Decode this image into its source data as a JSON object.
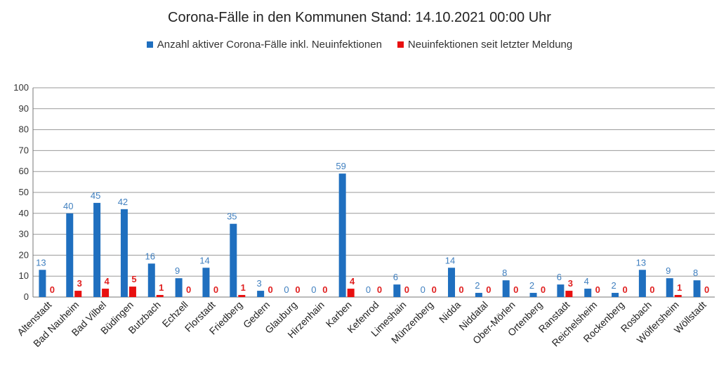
{
  "colors": {
    "active": "#1f6fbf",
    "new": "#e81010",
    "grid": "#999999"
  },
  "chart_data": {
    "type": "bar",
    "title": "Corona-Fälle in den Kommunen Stand: 14.10.2021 00:00 Uhr",
    "xlabel": "",
    "ylabel": "",
    "ylim": [
      0,
      100
    ],
    "yticks": [
      0,
      10,
      20,
      30,
      40,
      50,
      60,
      70,
      80,
      90,
      100
    ],
    "grid": true,
    "legend_position": "top",
    "categories": [
      "Altenstadt",
      "Bad Nauheim",
      "Bad Vilbel",
      "Büdingen",
      "Butzbach",
      "Echzell",
      "Florstadt",
      "Friedberg",
      "Gedern",
      "Glauburg",
      "Hirzenhain",
      "Karben",
      "Kefenrod",
      "Limeshain",
      "Münzenberg",
      "Nidda",
      "Niddatal",
      "Ober-Mörlen",
      "Ortenberg",
      "Ranstadt",
      "Reichelsheim",
      "Rockenberg",
      "Rosbach",
      "Wölfersheim",
      "Wöllstadt"
    ],
    "series": [
      {
        "name": "Anzahl aktiver Corona-Fälle inkl. Neuinfektionen",
        "values": [
          13,
          40,
          45,
          42,
          16,
          9,
          14,
          35,
          3,
          0,
          0,
          59,
          0,
          6,
          0,
          14,
          2,
          8,
          2,
          6,
          4,
          2,
          13,
          9,
          8
        ]
      },
      {
        "name": "Neuinfektionen seit letzter Meldung",
        "values": [
          0,
          3,
          4,
          5,
          1,
          0,
          0,
          1,
          0,
          0,
          0,
          4,
          0,
          0,
          0,
          0,
          0,
          0,
          0,
          3,
          0,
          0,
          0,
          1,
          0
        ]
      }
    ]
  }
}
